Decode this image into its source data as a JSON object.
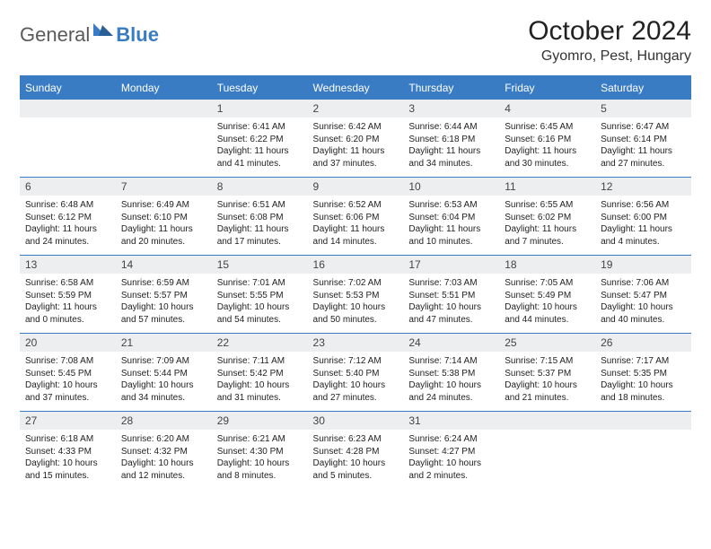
{
  "brand": {
    "part1": "General",
    "part2": "Blue"
  },
  "title": "October 2024",
  "location": "Gyomro, Pest, Hungary",
  "colors": {
    "accent": "#3a7cc4",
    "headerText": "#ffffff",
    "dayNumBg": "#eceeef"
  },
  "dayNames": [
    "Sunday",
    "Monday",
    "Tuesday",
    "Wednesday",
    "Thursday",
    "Friday",
    "Saturday"
  ],
  "weeks": [
    [
      null,
      null,
      {
        "n": "1",
        "sr": "6:41 AM",
        "ss": "6:22 PM",
        "dl": "11 hours and 41 minutes."
      },
      {
        "n": "2",
        "sr": "6:42 AM",
        "ss": "6:20 PM",
        "dl": "11 hours and 37 minutes."
      },
      {
        "n": "3",
        "sr": "6:44 AM",
        "ss": "6:18 PM",
        "dl": "11 hours and 34 minutes."
      },
      {
        "n": "4",
        "sr": "6:45 AM",
        "ss": "6:16 PM",
        "dl": "11 hours and 30 minutes."
      },
      {
        "n": "5",
        "sr": "6:47 AM",
        "ss": "6:14 PM",
        "dl": "11 hours and 27 minutes."
      }
    ],
    [
      {
        "n": "6",
        "sr": "6:48 AM",
        "ss": "6:12 PM",
        "dl": "11 hours and 24 minutes."
      },
      {
        "n": "7",
        "sr": "6:49 AM",
        "ss": "6:10 PM",
        "dl": "11 hours and 20 minutes."
      },
      {
        "n": "8",
        "sr": "6:51 AM",
        "ss": "6:08 PM",
        "dl": "11 hours and 17 minutes."
      },
      {
        "n": "9",
        "sr": "6:52 AM",
        "ss": "6:06 PM",
        "dl": "11 hours and 14 minutes."
      },
      {
        "n": "10",
        "sr": "6:53 AM",
        "ss": "6:04 PM",
        "dl": "11 hours and 10 minutes."
      },
      {
        "n": "11",
        "sr": "6:55 AM",
        "ss": "6:02 PM",
        "dl": "11 hours and 7 minutes."
      },
      {
        "n": "12",
        "sr": "6:56 AM",
        "ss": "6:00 PM",
        "dl": "11 hours and 4 minutes."
      }
    ],
    [
      {
        "n": "13",
        "sr": "6:58 AM",
        "ss": "5:59 PM",
        "dl": "11 hours and 0 minutes."
      },
      {
        "n": "14",
        "sr": "6:59 AM",
        "ss": "5:57 PM",
        "dl": "10 hours and 57 minutes."
      },
      {
        "n": "15",
        "sr": "7:01 AM",
        "ss": "5:55 PM",
        "dl": "10 hours and 54 minutes."
      },
      {
        "n": "16",
        "sr": "7:02 AM",
        "ss": "5:53 PM",
        "dl": "10 hours and 50 minutes."
      },
      {
        "n": "17",
        "sr": "7:03 AM",
        "ss": "5:51 PM",
        "dl": "10 hours and 47 minutes."
      },
      {
        "n": "18",
        "sr": "7:05 AM",
        "ss": "5:49 PM",
        "dl": "10 hours and 44 minutes."
      },
      {
        "n": "19",
        "sr": "7:06 AM",
        "ss": "5:47 PM",
        "dl": "10 hours and 40 minutes."
      }
    ],
    [
      {
        "n": "20",
        "sr": "7:08 AM",
        "ss": "5:45 PM",
        "dl": "10 hours and 37 minutes."
      },
      {
        "n": "21",
        "sr": "7:09 AM",
        "ss": "5:44 PM",
        "dl": "10 hours and 34 minutes."
      },
      {
        "n": "22",
        "sr": "7:11 AM",
        "ss": "5:42 PM",
        "dl": "10 hours and 31 minutes."
      },
      {
        "n": "23",
        "sr": "7:12 AM",
        "ss": "5:40 PM",
        "dl": "10 hours and 27 minutes."
      },
      {
        "n": "24",
        "sr": "7:14 AM",
        "ss": "5:38 PM",
        "dl": "10 hours and 24 minutes."
      },
      {
        "n": "25",
        "sr": "7:15 AM",
        "ss": "5:37 PM",
        "dl": "10 hours and 21 minutes."
      },
      {
        "n": "26",
        "sr": "7:17 AM",
        "ss": "5:35 PM",
        "dl": "10 hours and 18 minutes."
      }
    ],
    [
      {
        "n": "27",
        "sr": "6:18 AM",
        "ss": "4:33 PM",
        "dl": "10 hours and 15 minutes."
      },
      {
        "n": "28",
        "sr": "6:20 AM",
        "ss": "4:32 PM",
        "dl": "10 hours and 12 minutes."
      },
      {
        "n": "29",
        "sr": "6:21 AM",
        "ss": "4:30 PM",
        "dl": "10 hours and 8 minutes."
      },
      {
        "n": "30",
        "sr": "6:23 AM",
        "ss": "4:28 PM",
        "dl": "10 hours and 5 minutes."
      },
      {
        "n": "31",
        "sr": "6:24 AM",
        "ss": "4:27 PM",
        "dl": "10 hours and 2 minutes."
      },
      null,
      null
    ]
  ],
  "labels": {
    "sunrise": "Sunrise:",
    "sunset": "Sunset:",
    "daylight": "Daylight:"
  }
}
